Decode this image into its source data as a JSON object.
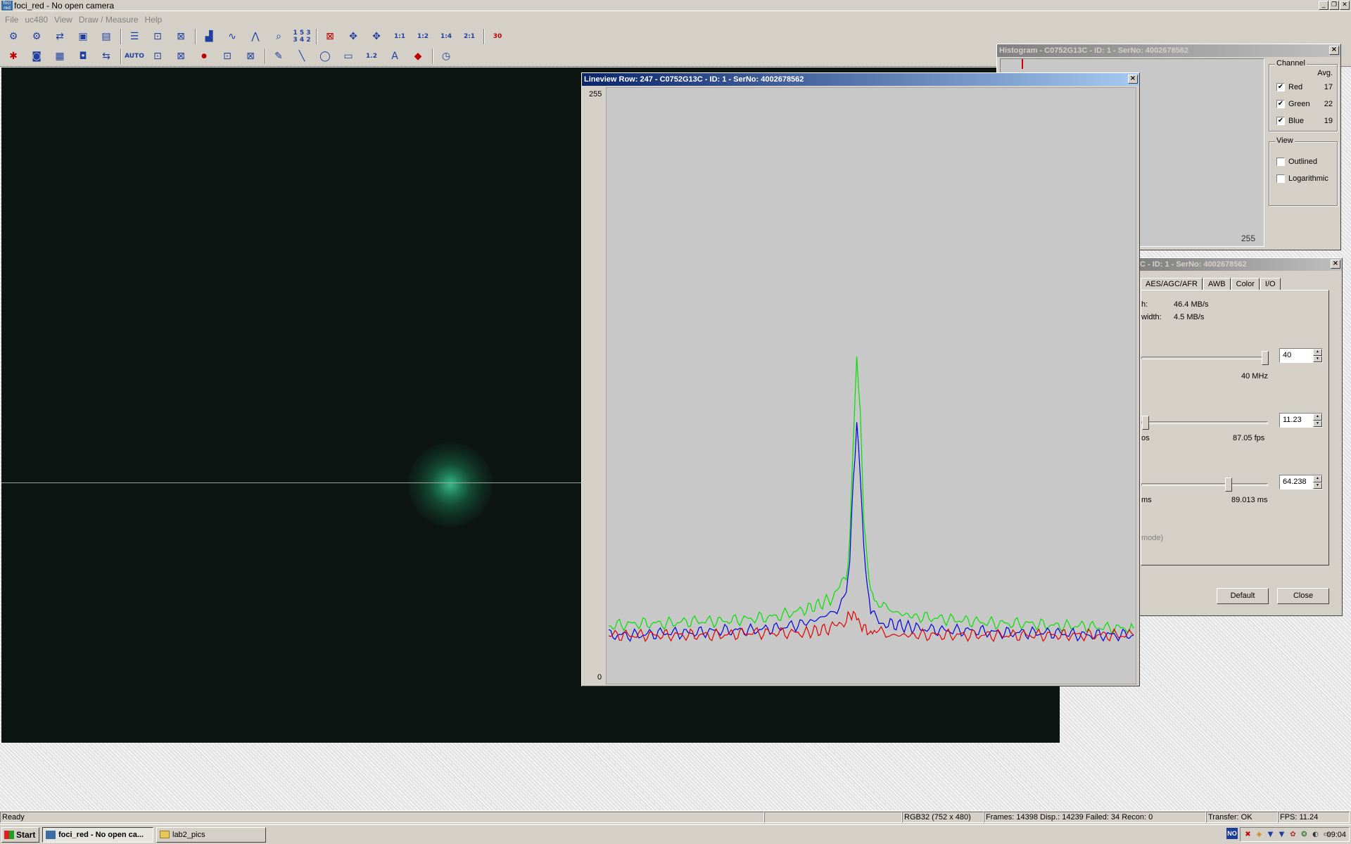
{
  "app": {
    "title": "foci_red - No open camera",
    "icon_label": "foci red"
  },
  "menu": [
    "File",
    "uc480",
    "View",
    "Draw / Measure",
    "Help"
  ],
  "toolbar": {
    "text_tools": {
      "sequence_label_top": "1 5 3",
      "sequence_label_bottom": "3 4 2",
      "zoom_1_1": "1:1",
      "zoom_1_2": "1:2",
      "zoom_1_4": "1:4",
      "zoom_2_1": "2:1",
      "fps_30": "30",
      "auto_label": "AUTO",
      "measure_label": "1.2",
      "text_tool": "A"
    }
  },
  "histogram": {
    "title": "Histogram - C0752G13C - ID: 1 - SerNo: 4002678562",
    "axis_max": "255",
    "channel_label": "Channel",
    "avg_label": "Avg.",
    "channels": [
      {
        "name": "Red",
        "checked": "✔",
        "avg": "17"
      },
      {
        "name": "Green",
        "checked": "✔",
        "avg": "22"
      },
      {
        "name": "Blue",
        "checked": "✔",
        "avg": "19"
      }
    ],
    "view_label": "View",
    "view_options": [
      {
        "name": "Outlined",
        "checked": ""
      },
      {
        "name": "Logarithmic",
        "checked": ""
      }
    ],
    "axis_partial": "2"
  },
  "lineview": {
    "title": "Lineview Row: 247 - C0752G13C - ID: 1 - SerNo: 4002678562",
    "y_max": "255",
    "y_min": "0"
  },
  "chart_data": {
    "type": "line",
    "ylim": [
      0,
      255
    ],
    "x": [
      0,
      40,
      80,
      120,
      160,
      200,
      240,
      280,
      300,
      320,
      330,
      340,
      345,
      350,
      355,
      360,
      365,
      370,
      375,
      380,
      390,
      400,
      420,
      440,
      480,
      520,
      560,
      600,
      640,
      680,
      720,
      751
    ],
    "series": [
      {
        "color": "#00e000",
        "values": [
          24,
          25,
          25,
          26,
          26,
          27,
          28,
          31,
          33,
          36,
          40,
          45,
          60,
          105,
          140,
          115,
          72,
          50,
          40,
          36,
          33,
          31,
          29,
          28,
          27,
          26,
          25,
          25,
          24,
          24,
          23,
          23
        ]
      },
      {
        "color": "#0000e0",
        "values": [
          20,
          20,
          21,
          21,
          22,
          22,
          23,
          25,
          27,
          30,
          33,
          38,
          52,
          88,
          110,
          90,
          58,
          40,
          32,
          28,
          26,
          25,
          24,
          23,
          22,
          22,
          21,
          21,
          21,
          20,
          20,
          20
        ]
      },
      {
        "color": "#e00000",
        "values": [
          20,
          20,
          20,
          20,
          20,
          21,
          21,
          21,
          22,
          23,
          25,
          27,
          28,
          30,
          27,
          25,
          23,
          22,
          21,
          21,
          21,
          20,
          20,
          20,
          20,
          20,
          20,
          20,
          20,
          20,
          20,
          20
        ]
      }
    ]
  },
  "properties": {
    "title_partial": "C - ID: 1 - SerNo: 4002678562",
    "tabs": [
      "AES/AGC/AFR",
      "AWB",
      "Color",
      "I/O"
    ],
    "bandwidth_1_label": "h:",
    "bandwidth_1_value": "46.4 MB/s",
    "bandwidth_2_label": "width:",
    "bandwidth_2_value": "4.5 MB/s",
    "pixelclock": {
      "value": "40",
      "max_label": "40 MHz",
      "level": 1.0
    },
    "framerate": {
      "value": "11.23",
      "min_label": "os",
      "max_label": "87.05 fps",
      "level": 0.0
    },
    "exposure": {
      "value": "64.238",
      "min_label": "ms",
      "max_label": "89.013 ms",
      "level": 0.72
    },
    "mode_label": "mode)",
    "default_btn": "Default",
    "close_btn": "Close"
  },
  "status": {
    "ready": "Ready",
    "format": "RGB32 (752 x 480)",
    "frames": "Frames: 14398  Disp.: 14239   Failed: 34   Recon: 0",
    "transfer": "Transfer: OK",
    "fps": "FPS: 11.24"
  },
  "taskbar": {
    "start": "Start",
    "tasks": [
      {
        "label": "foci_red - No open ca..."
      },
      {
        "label": "lab2_pics"
      }
    ],
    "lang": "NO",
    "clock": "09:04"
  }
}
